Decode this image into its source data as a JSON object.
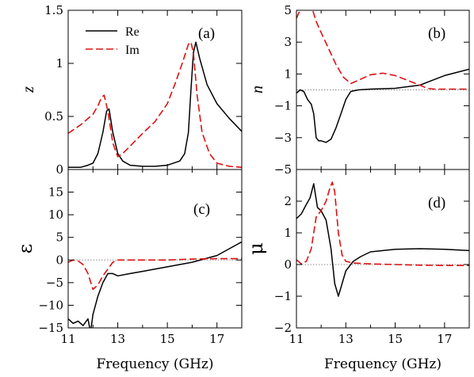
{
  "colors": {
    "re": "#000000",
    "im": "#dd1111",
    "zero": "#888888",
    "frame": "#000000"
  },
  "legend": {
    "re": "Re",
    "im": "Im"
  },
  "chart_data": [
    {
      "type": "line",
      "panel": "a",
      "label": "(a)",
      "ylabel": "z",
      "xlabel": "",
      "xlim": [
        11,
        18
      ],
      "ylim": [
        0,
        1.5
      ],
      "xticks": [
        11,
        13,
        15,
        17
      ],
      "yticks": [
        0,
        0.5,
        1,
        1.5
      ],
      "ytick_labels": [
        "0",
        "0.5",
        "1",
        "1.5"
      ],
      "zero_line": false,
      "legend": true,
      "legend_location": "top-left",
      "series": [
        {
          "name": "Re",
          "style": "solid",
          "x": [
            11,
            11.5,
            11.8,
            12,
            12.2,
            12.4,
            12.55,
            12.65,
            12.8,
            13,
            13.2,
            13.5,
            14,
            14.5,
            15,
            15.5,
            15.7,
            15.85,
            15.95,
            16.05,
            16.15,
            16.3,
            16.6,
            17,
            17.5,
            18
          ],
          "y": [
            0.02,
            0.02,
            0.04,
            0.06,
            0.15,
            0.35,
            0.55,
            0.57,
            0.35,
            0.15,
            0.08,
            0.04,
            0.03,
            0.03,
            0.04,
            0.08,
            0.15,
            0.35,
            0.75,
            1.1,
            1.2,
            1.05,
            0.8,
            0.62,
            0.48,
            0.36
          ]
        },
        {
          "name": "Im",
          "style": "dashed",
          "x": [
            11,
            11.5,
            12,
            12.2,
            12.35,
            12.45,
            12.6,
            12.8,
            13,
            13.2,
            13.5,
            14,
            14.5,
            15,
            15.3,
            15.6,
            15.85,
            15.95,
            16.05,
            16.2,
            16.4,
            16.7,
            17,
            17.5,
            18
          ],
          "y": [
            0.34,
            0.42,
            0.52,
            0.6,
            0.68,
            0.7,
            0.55,
            0.25,
            0.12,
            0.15,
            0.22,
            0.34,
            0.45,
            0.62,
            0.8,
            1.0,
            1.18,
            1.2,
            1.1,
            0.7,
            0.35,
            0.15,
            0.06,
            0.03,
            0.02
          ]
        }
      ]
    },
    {
      "type": "line",
      "panel": "b",
      "label": "(b)",
      "ylabel": "n",
      "xlabel": "",
      "xlim": [
        11,
        18
      ],
      "ylim": [
        -5,
        5
      ],
      "xticks": [
        11,
        13,
        15,
        17
      ],
      "yticks": [
        -5,
        -3,
        -1,
        1,
        3,
        5
      ],
      "ytick_labels": [
        "−5",
        "−3",
        "−1",
        "1",
        "3",
        "5"
      ],
      "zero_line": true,
      "legend": false,
      "series": [
        {
          "name": "Re",
          "style": "solid",
          "x": [
            11,
            11.15,
            11.3,
            11.45,
            11.6,
            11.7,
            11.8,
            11.9,
            12,
            12.2,
            12.4,
            12.6,
            12.8,
            13,
            13.2,
            13.5,
            14,
            15,
            16,
            16.5,
            17,
            17.5,
            18
          ],
          "y": [
            -0.2,
            0.0,
            -0.1,
            -0.6,
            -0.9,
            -1.5,
            -3.0,
            -3.2,
            -3.2,
            -3.3,
            -3.1,
            -2.4,
            -1.5,
            -0.6,
            -0.1,
            0.0,
            0.05,
            0.1,
            0.3,
            0.6,
            0.9,
            1.1,
            1.3
          ]
        },
        {
          "name": "Im",
          "style": "dashed",
          "x": [
            11,
            11.2,
            11.4,
            11.6,
            11.8,
            12,
            12.3,
            12.6,
            12.9,
            13.2,
            13.5,
            14,
            14.5,
            15,
            15.5,
            16,
            16.3,
            16.6,
            17,
            18
          ],
          "y": [
            4.5,
            5.2,
            5.5,
            5.3,
            4.3,
            3.6,
            2.6,
            1.6,
            0.8,
            0.4,
            0.6,
            0.95,
            1.05,
            0.9,
            0.6,
            0.3,
            0.1,
            0.05,
            0.05,
            0.05
          ]
        }
      ]
    },
    {
      "type": "line",
      "panel": "c",
      "label": "(c)",
      "ylabel": "ε",
      "xlabel": "Frequency (GHz)",
      "xlim": [
        11,
        18
      ],
      "ylim": [
        -15,
        20
      ],
      "xticks": [
        11,
        13,
        15,
        17
      ],
      "yticks": [
        -15,
        -10,
        -5,
        0,
        5,
        10,
        15
      ],
      "ytick_labels": [
        "−15",
        "−10",
        "−5",
        "0",
        "5",
        "10",
        "15"
      ],
      "zero_line": true,
      "legend": false,
      "series": [
        {
          "name": "Re",
          "style": "solid",
          "x": [
            11,
            11.2,
            11.4,
            11.6,
            11.8,
            11.9,
            12,
            12.2,
            12.4,
            12.6,
            12.8,
            13,
            13.5,
            14,
            15,
            16,
            17,
            17.5,
            18
          ],
          "y": [
            -13,
            -14,
            -13.5,
            -14.5,
            -13,
            -16,
            -12,
            -8,
            -5,
            -3,
            -3,
            -3.5,
            -3,
            -2.5,
            -1.5,
            -0.5,
            1,
            2.5,
            4
          ]
        },
        {
          "name": "Im",
          "style": "dashed",
          "x": [
            11,
            11.2,
            11.4,
            11.6,
            11.8,
            12,
            12.2,
            12.4,
            12.6,
            12.8,
            13,
            13.5,
            14,
            15,
            16,
            17,
            18
          ],
          "y": [
            -0.5,
            0,
            -0.2,
            -1,
            -3,
            -6.5,
            -5.5,
            -3.5,
            -2,
            -0.5,
            0,
            0,
            0,
            0,
            0.2,
            0.3,
            0.3
          ]
        }
      ]
    },
    {
      "type": "line",
      "panel": "d",
      "label": "(d)",
      "ylabel": "μ",
      "xlabel": "Frequency (GHz)",
      "xlim": [
        11,
        18
      ],
      "ylim": [
        -2,
        3
      ],
      "xticks": [
        11,
        13,
        15,
        17
      ],
      "yticks": [
        -2,
        -1,
        0,
        1,
        2
      ],
      "ytick_labels": [
        "−2",
        "−1",
        "0",
        "1",
        "2"
      ],
      "zero_line": true,
      "legend": false,
      "series": [
        {
          "name": "Re",
          "style": "solid",
          "x": [
            11,
            11.2,
            11.4,
            11.55,
            11.7,
            11.85,
            12,
            12.2,
            12.4,
            12.55,
            12.7,
            12.85,
            13,
            13.3,
            13.6,
            14,
            15,
            16,
            17,
            18
          ],
          "y": [
            1.45,
            1.6,
            1.9,
            2.1,
            2.55,
            1.8,
            1.7,
            1.4,
            0.5,
            -0.6,
            -1.0,
            -0.6,
            -0.2,
            0.1,
            0.25,
            0.4,
            0.48,
            0.5,
            0.48,
            0.44
          ]
        },
        {
          "name": "Im",
          "style": "dashed",
          "x": [
            11,
            11.2,
            11.4,
            11.6,
            11.8,
            12,
            12.2,
            12.35,
            12.45,
            12.55,
            12.7,
            12.85,
            13,
            13.3,
            14,
            15,
            16,
            17,
            18
          ],
          "y": [
            0.15,
            0.02,
            0.1,
            0.5,
            1.5,
            1.7,
            2.0,
            2.4,
            2.6,
            2.3,
            1.0,
            0.3,
            0.1,
            0.05,
            0.02,
            0.0,
            -0.02,
            -0.03,
            -0.03
          ]
        }
      ]
    }
  ]
}
